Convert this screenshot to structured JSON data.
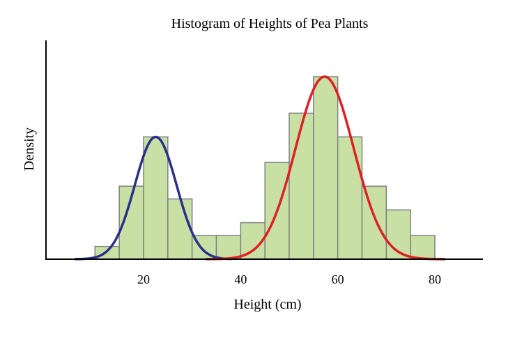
{
  "chart_data": {
    "type": "bar",
    "title": "Histogram of Heights of Pea Plants",
    "xlabel": "Height (cm)",
    "ylabel": "Density",
    "xlim": [
      0,
      90
    ],
    "ylim": [
      0,
      1.0
    ],
    "x_ticks": [
      20,
      40,
      60,
      80
    ],
    "bin_width": 5,
    "bins": [
      {
        "start": 10,
        "end": 15,
        "value": 0.07
      },
      {
        "start": 15,
        "end": 20,
        "value": 0.4
      },
      {
        "start": 20,
        "end": 25,
        "value": 0.67
      },
      {
        "start": 25,
        "end": 30,
        "value": 0.33
      },
      {
        "start": 30,
        "end": 35,
        "value": 0.13
      },
      {
        "start": 35,
        "end": 40,
        "value": 0.13
      },
      {
        "start": 40,
        "end": 45,
        "value": 0.2
      },
      {
        "start": 45,
        "end": 50,
        "value": 0.53
      },
      {
        "start": 50,
        "end": 55,
        "value": 0.8
      },
      {
        "start": 55,
        "end": 60,
        "value": 1.0
      },
      {
        "start": 60,
        "end": 65,
        "value": 0.67
      },
      {
        "start": 65,
        "end": 70,
        "value": 0.4
      },
      {
        "start": 70,
        "end": 75,
        "value": 0.27
      },
      {
        "start": 75,
        "end": 80,
        "value": 0.13
      }
    ],
    "series": [
      {
        "type": "normal-curve",
        "mean": 22.5,
        "sd": 4.3,
        "peak": 0.67,
        "x_range": [
          6,
          38
        ],
        "color": "#2a2f8c"
      },
      {
        "type": "normal-curve",
        "mean": 57.3,
        "sd": 6.0,
        "peak": 1.0,
        "x_range": [
          33,
          82
        ],
        "color": "#e01e25"
      }
    ],
    "bar_color": "#c8e0a4",
    "bar_edge_color": "#808080",
    "grid": false,
    "y_ticks_visible": false
  }
}
